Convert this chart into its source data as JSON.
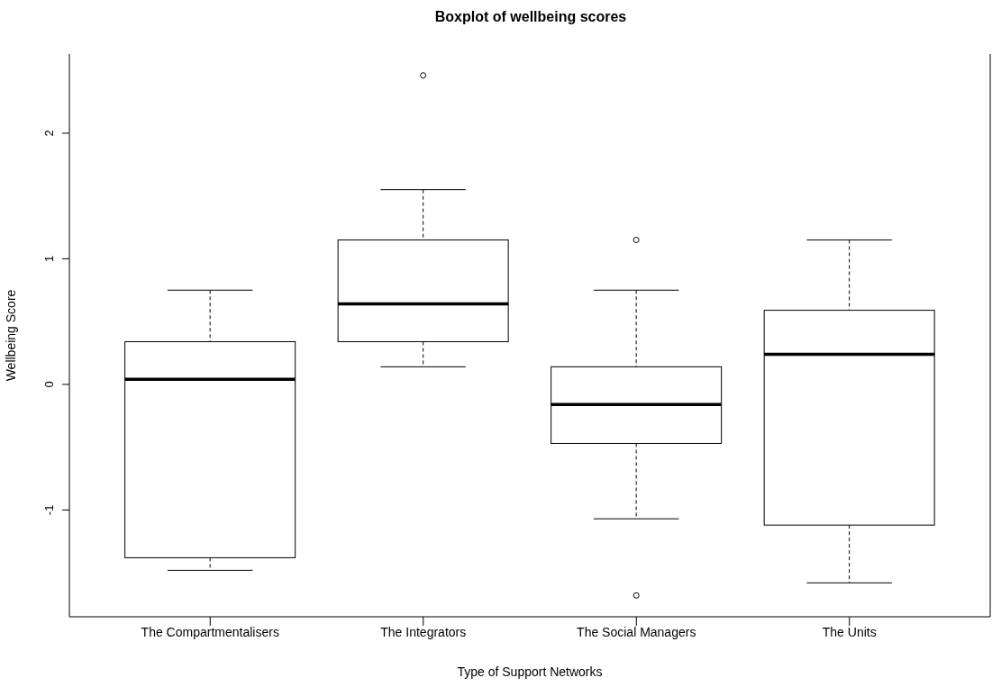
{
  "chart_data": {
    "type": "box",
    "title": "Boxplot of wellbeing scores",
    "xlabel": "Type of Support Networks",
    "ylabel": "Wellbeing Score",
    "categories": [
      "The Compartmentalisers",
      "The Integrators",
      "The Social Managers",
      "The Units"
    ],
    "boxes": [
      {
        "low": -1.48,
        "q1": -1.38,
        "median": 0.04,
        "q3": 0.34,
        "high": 0.75
      },
      {
        "low": 0.14,
        "q1": 0.34,
        "median": 0.64,
        "q3": 1.15,
        "high": 1.55,
        "outliers": [
          2.46
        ]
      },
      {
        "low": -1.07,
        "q1": -0.47,
        "median": -0.16,
        "q3": 0.14,
        "high": 0.75,
        "outliers": [
          1.15,
          -1.68
        ]
      },
      {
        "low": -1.58,
        "q1": -1.12,
        "median": 0.24,
        "q3": 0.59,
        "high": 1.15
      }
    ],
    "color": "#000000",
    "ylim": [
      -1.85,
      2.63
    ],
    "yticks": [
      -1,
      0,
      1,
      2
    ],
    "grid": false
  }
}
